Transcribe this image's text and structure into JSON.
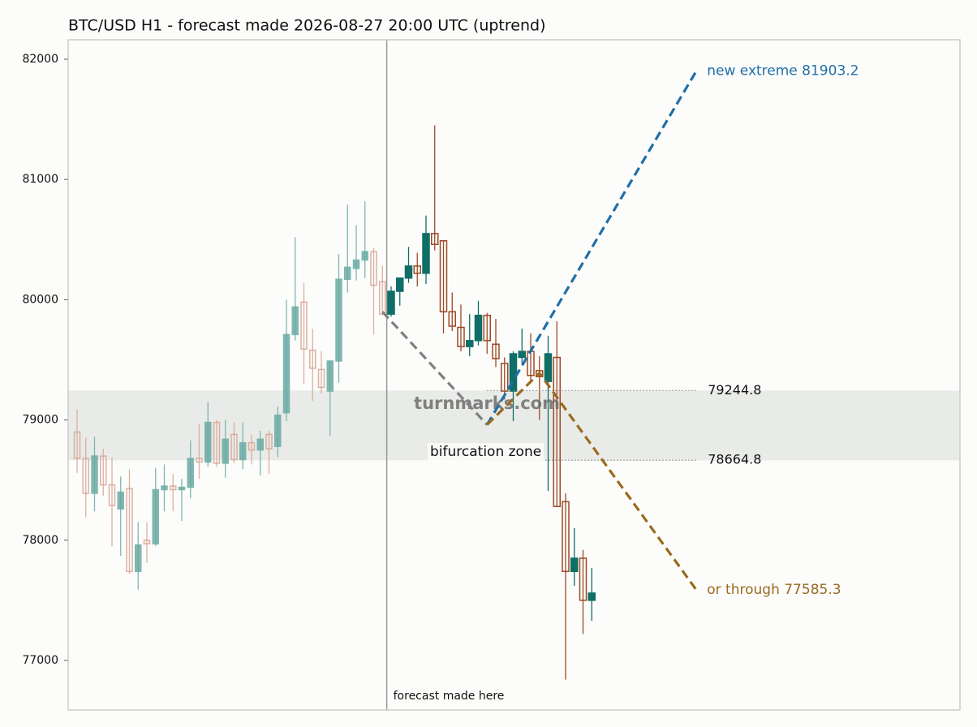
{
  "chart_data": {
    "type": "candlestick",
    "title": "BTC/USD H1 - forecast made 2026-08-27 20:00 UTC (uptrend)",
    "ylim": [
      76588,
      82162
    ],
    "yticks": [
      77000,
      78000,
      79000,
      80000,
      81000,
      82000
    ],
    "history": {
      "open": [
        78900,
        78680,
        78390,
        78700,
        78460,
        78260,
        78430,
        77740,
        78000,
        77970,
        78420,
        78450,
        78420,
        78440,
        78680,
        78650,
        78980,
        78640,
        78880,
        78670,
        78810,
        78750,
        78880,
        78780,
        79060,
        79710,
        79980,
        79580,
        79420,
        79240,
        79490,
        80170,
        80260,
        80330,
        80400,
        80150
      ],
      "high": [
        79090,
        78850,
        78860,
        78760,
        78690,
        78530,
        78590,
        78150,
        78150,
        78600,
        78630,
        78550,
        78510,
        78830,
        78970,
        79150,
        79000,
        79000,
        78980,
        78980,
        78880,
        78910,
        78910,
        79110,
        80000,
        80520,
        80140,
        79760,
        79570,
        79490,
        80380,
        80790,
        80620,
        80820,
        80430,
        80280
      ],
      "low": [
        78560,
        78190,
        78240,
        78370,
        77950,
        77870,
        77720,
        77590,
        77810,
        77950,
        78240,
        78240,
        78160,
        78350,
        78510,
        78610,
        78610,
        78520,
        78640,
        78590,
        78630,
        78540,
        78550,
        78690,
        78990,
        79660,
        79300,
        79160,
        79220,
        78870,
        79310,
        80060,
        80160,
        80180,
        79710,
        79870
      ],
      "close": [
        78680,
        78390,
        78700,
        78460,
        78290,
        78400,
        77740,
        77960,
        77970,
        78420,
        78450,
        78420,
        78440,
        78680,
        78650,
        78980,
        78640,
        78840,
        78670,
        78810,
        78750,
        78840,
        78760,
        79040,
        79710,
        79940,
        79590,
        79430,
        79270,
        79490,
        80170,
        80270,
        80330,
        80400,
        80120,
        79880
      ]
    },
    "forecast": {
      "open": [
        79880,
        80070,
        80180,
        80280,
        80220,
        80550,
        80490,
        79900,
        79770,
        79610,
        79660,
        79870,
        79630,
        79470,
        79240,
        79520,
        79570,
        79410,
        79320,
        79520,
        78320,
        77740,
        77850,
        77500
      ],
      "high": [
        80110,
        80180,
        80440,
        80390,
        80700,
        81450,
        80490,
        80060,
        79960,
        79880,
        79990,
        79890,
        79840,
        79520,
        79570,
        79760,
        79720,
        79530,
        79700,
        79820,
        78390,
        78100,
        77920,
        77770
      ],
      "low": [
        79860,
        79950,
        80140,
        80110,
        80130,
        80410,
        79720,
        79740,
        79570,
        79530,
        79620,
        79550,
        79440,
        79170,
        78990,
        79470,
        79320,
        79000,
        78410,
        78280,
        76840,
        77620,
        77220,
        77330
      ],
      "close": [
        80070,
        80180,
        80280,
        80220,
        80550,
        80460,
        79900,
        79780,
        79610,
        79660,
        79870,
        79660,
        79510,
        79240,
        79550,
        79570,
        79370,
        79360,
        79550,
        78280,
        77740,
        77850,
        77500,
        77560
      ]
    },
    "colors": {
      "history_up": "#6aaba4",
      "history_down": "#d6a393",
      "forecast_up": "#0f6e66",
      "forecast_down": "#9c4a25"
    },
    "paths": [
      {
        "color": "#808080",
        "x": [
          35,
          47
        ],
        "values": [
          79900,
          78960
        ]
      },
      {
        "color": "#1f6fa8",
        "x": [
          47,
          71
        ],
        "values": [
          78960,
          81903.2
        ],
        "label": "new extreme 81903.2"
      },
      {
        "color": "#9a6a1f",
        "x": [
          47,
          53,
          71
        ],
        "values": [
          78960,
          79390,
          77585.3
        ],
        "label": "or through 77585.3"
      }
    ],
    "zone": {
      "label": "bifurcation zone",
      "values": [
        78664.8,
        79244.8
      ]
    },
    "forecast_note": "forecast made here",
    "watermark": "turnmarks.com"
  }
}
